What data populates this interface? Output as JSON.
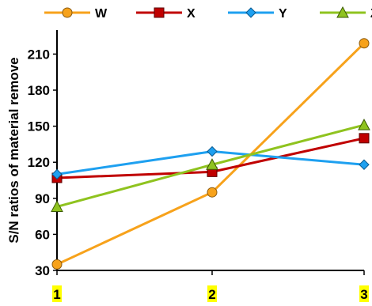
{
  "chart_data": {
    "type": "line",
    "title": "",
    "xlabel": "",
    "ylabel": "S/N ratios of material remove",
    "x": [
      "1",
      "2",
      "3"
    ],
    "ylim": [
      30,
      230
    ],
    "yticks": [
      30,
      60,
      90,
      120,
      150,
      180,
      210
    ],
    "grid": false,
    "legend_position": "top",
    "x_tick_highlight": "#ffff00",
    "series": [
      {
        "name": "W",
        "values": [
          35,
          95,
          219
        ],
        "color": "#f7a21b",
        "marker": "circle"
      },
      {
        "name": "X",
        "values": [
          107,
          112,
          140
        ],
        "color": "#c00000",
        "marker": "square"
      },
      {
        "name": "Y",
        "values": [
          110,
          129,
          118
        ],
        "color": "#1ea0f0",
        "marker": "diamond"
      },
      {
        "name": "Z",
        "values": [
          83,
          118,
          151
        ],
        "color": "#8fc31f",
        "marker": "triangle"
      }
    ]
  }
}
